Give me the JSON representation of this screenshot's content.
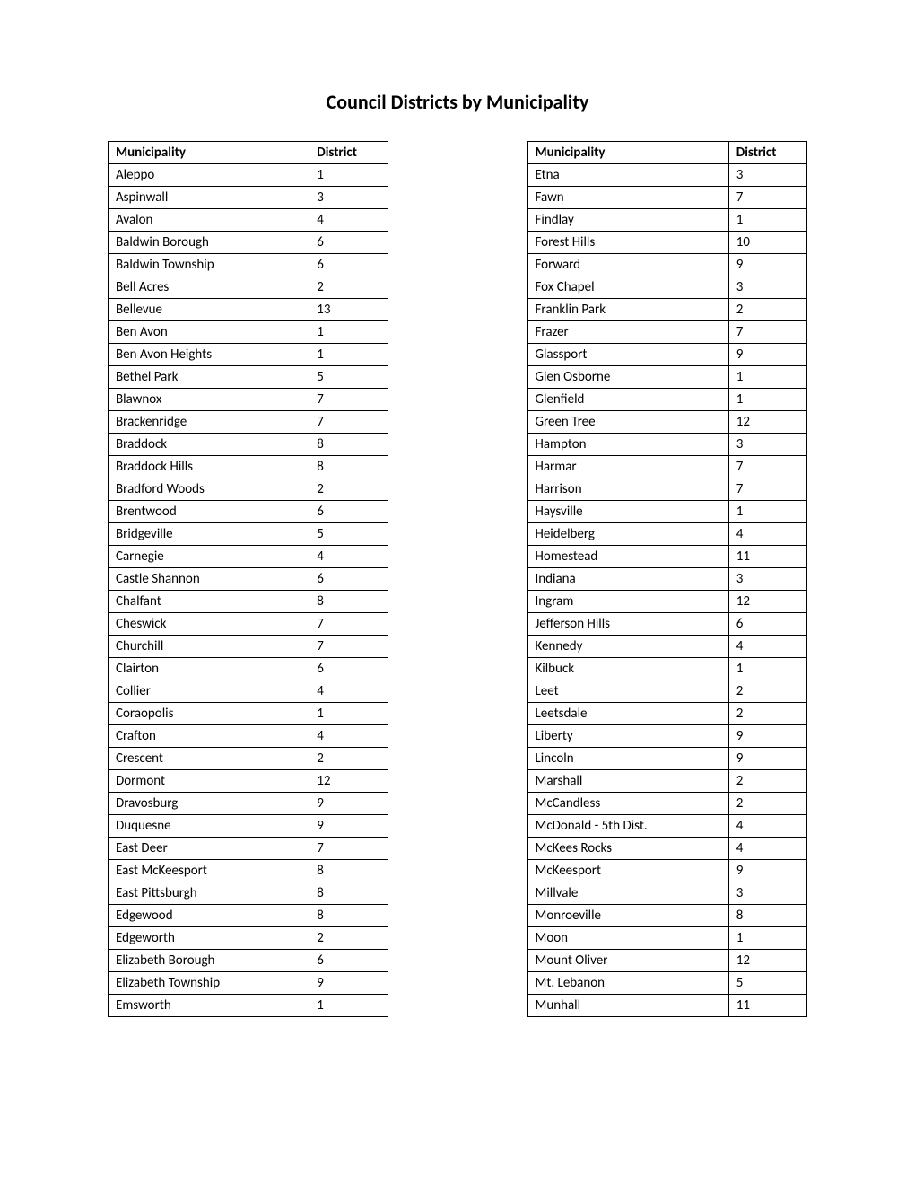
{
  "title": "Council Districts by Municipality",
  "columns": {
    "municipality": "Municipality",
    "district": "District"
  },
  "table_style": {
    "border_color": "#000000",
    "background_color": "#ffffff",
    "text_color": "#000000",
    "header_fontsize": 15,
    "cell_fontsize": 15,
    "header_fontweight": "bold",
    "col_municipality_width": "72%",
    "col_district_width": "28%"
  },
  "left_table": [
    {
      "municipality": "Aleppo",
      "district": "1"
    },
    {
      "municipality": "Aspinwall",
      "district": "3"
    },
    {
      "municipality": "Avalon",
      "district": "4"
    },
    {
      "municipality": "Baldwin Borough",
      "district": "6"
    },
    {
      "municipality": "Baldwin Township",
      "district": "6"
    },
    {
      "municipality": "Bell Acres",
      "district": "2"
    },
    {
      "municipality": "Bellevue",
      "district": "13"
    },
    {
      "municipality": "Ben Avon",
      "district": "1"
    },
    {
      "municipality": "Ben Avon Heights",
      "district": "1"
    },
    {
      "municipality": "Bethel Park",
      "district": "5"
    },
    {
      "municipality": "Blawnox",
      "district": "7"
    },
    {
      "municipality": "Brackenridge",
      "district": "7"
    },
    {
      "municipality": "Braddock",
      "district": "8"
    },
    {
      "municipality": "Braddock Hills",
      "district": "8"
    },
    {
      "municipality": "Bradford Woods",
      "district": "2"
    },
    {
      "municipality": "Brentwood",
      "district": "6"
    },
    {
      "municipality": "Bridgeville",
      "district": "5"
    },
    {
      "municipality": "Carnegie",
      "district": "4"
    },
    {
      "municipality": "Castle Shannon",
      "district": "6"
    },
    {
      "municipality": "Chalfant",
      "district": "8"
    },
    {
      "municipality": "Cheswick",
      "district": "7"
    },
    {
      "municipality": "Churchill",
      "district": "7"
    },
    {
      "municipality": "Clairton",
      "district": "6"
    },
    {
      "municipality": "Collier",
      "district": "4"
    },
    {
      "municipality": "Coraopolis",
      "district": "1"
    },
    {
      "municipality": "Crafton",
      "district": "4"
    },
    {
      "municipality": "Crescent",
      "district": "2"
    },
    {
      "municipality": "Dormont",
      "district": "12"
    },
    {
      "municipality": "Dravosburg",
      "district": "9"
    },
    {
      "municipality": "Duquesne",
      "district": "9"
    },
    {
      "municipality": "East Deer",
      "district": "7"
    },
    {
      "municipality": "East McKeesport",
      "district": "8"
    },
    {
      "municipality": "East Pittsburgh",
      "district": "8"
    },
    {
      "municipality": "Edgewood",
      "district": "8"
    },
    {
      "municipality": "Edgeworth",
      "district": "2"
    },
    {
      "municipality": "Elizabeth Borough",
      "district": "6"
    },
    {
      "municipality": "Elizabeth Township",
      "district": "9"
    },
    {
      "municipality": "Emsworth",
      "district": "1"
    }
  ],
  "right_table": [
    {
      "municipality": "Etna",
      "district": "3"
    },
    {
      "municipality": "Fawn",
      "district": "7"
    },
    {
      "municipality": "Findlay",
      "district": "1"
    },
    {
      "municipality": "Forest Hills",
      "district": "10"
    },
    {
      "municipality": "Forward",
      "district": "9"
    },
    {
      "municipality": "Fox Chapel",
      "district": "3"
    },
    {
      "municipality": "Franklin Park",
      "district": "2"
    },
    {
      "municipality": "Frazer",
      "district": "7"
    },
    {
      "municipality": "Glassport",
      "district": "9"
    },
    {
      "municipality": "Glen Osborne",
      "district": "1"
    },
    {
      "municipality": "Glenfield",
      "district": "1"
    },
    {
      "municipality": "Green Tree",
      "district": "12"
    },
    {
      "municipality": "Hampton",
      "district": "3"
    },
    {
      "municipality": "Harmar",
      "district": "7"
    },
    {
      "municipality": "Harrison",
      "district": "7"
    },
    {
      "municipality": "Haysville",
      "district": "1"
    },
    {
      "municipality": "Heidelberg",
      "district": "4"
    },
    {
      "municipality": "Homestead",
      "district": "11"
    },
    {
      "municipality": "Indiana",
      "district": "3"
    },
    {
      "municipality": "Ingram",
      "district": "12"
    },
    {
      "municipality": "Jefferson Hills",
      "district": "6"
    },
    {
      "municipality": "Kennedy",
      "district": "4"
    },
    {
      "municipality": "Kilbuck",
      "district": "1"
    },
    {
      "municipality": "Leet",
      "district": "2"
    },
    {
      "municipality": "Leetsdale",
      "district": "2"
    },
    {
      "municipality": "Liberty",
      "district": "9"
    },
    {
      "municipality": "Lincoln",
      "district": "9"
    },
    {
      "municipality": "Marshall",
      "district": "2"
    },
    {
      "municipality": "McCandless",
      "district": "2"
    },
    {
      "municipality": "McDonald - 5th Dist.",
      "district": "4"
    },
    {
      "municipality": "McKees Rocks",
      "district": "4"
    },
    {
      "municipality": "McKeesport",
      "district": "9"
    },
    {
      "municipality": "Millvale",
      "district": "3"
    },
    {
      "municipality": "Monroeville",
      "district": "8"
    },
    {
      "municipality": "Moon",
      "district": "1"
    },
    {
      "municipality": "Mount Oliver",
      "district": "12"
    },
    {
      "municipality": "Mt. Lebanon",
      "district": "5"
    },
    {
      "municipality": "Munhall",
      "district": "11"
    }
  ]
}
